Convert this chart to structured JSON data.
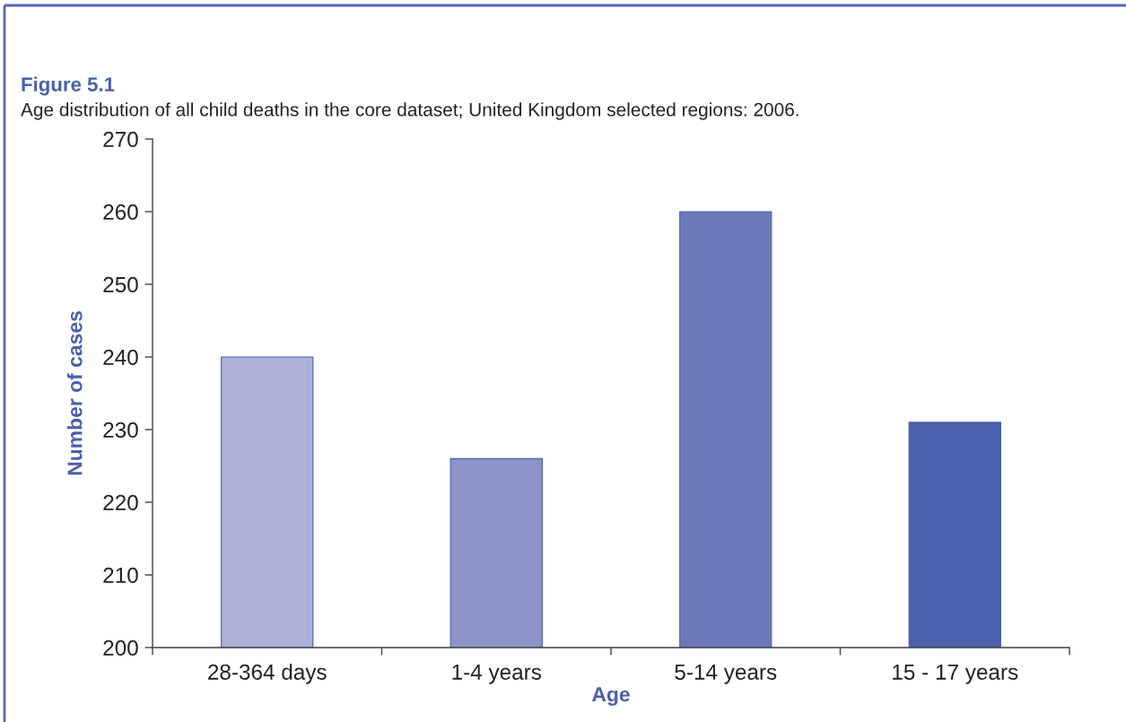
{
  "chart_data": {
    "type": "bar",
    "title": "Figure 5.1",
    "subtitle": "Age distribution of all child deaths in the core dataset; United Kingdom selected regions: 2006.",
    "xlabel": "Age",
    "ylabel": "Number of cases",
    "categories": [
      "28-364 days",
      "1-4 years",
      "5-14 years",
      "15 - 17 years"
    ],
    "values": [
      240,
      226,
      260,
      231
    ],
    "colors": [
      "#abb1d8",
      "#8b93c7",
      "#6b79b8",
      "#4a62ad"
    ],
    "ylim": [
      200,
      270
    ],
    "yticks": [
      200,
      210,
      220,
      230,
      240,
      250,
      260,
      270
    ]
  }
}
